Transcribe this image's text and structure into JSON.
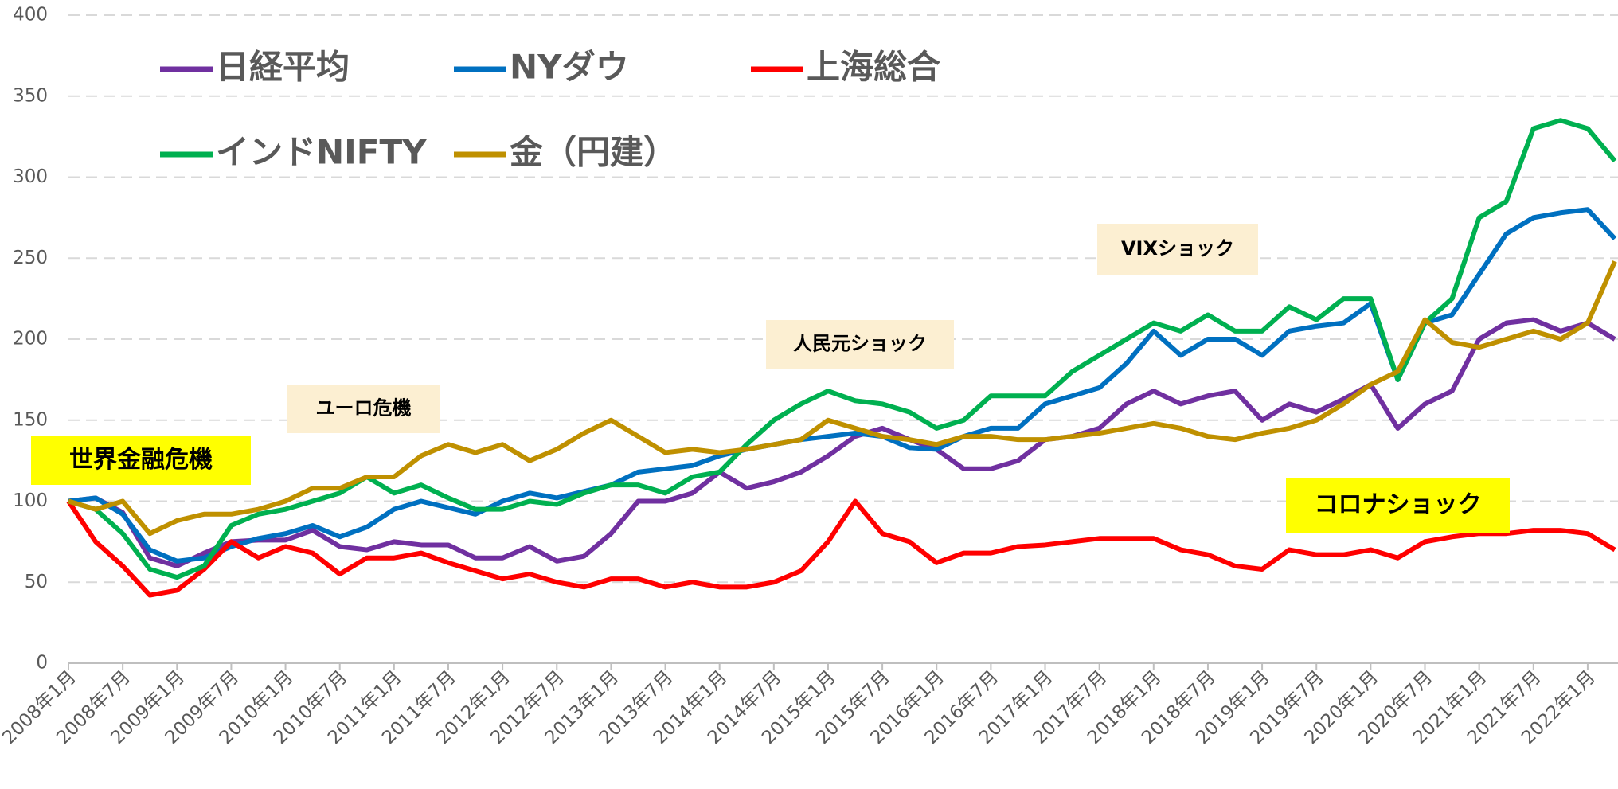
{
  "chart_data": {
    "type": "line",
    "categories": [
      "2008年1月",
      null,
      "2008年7月",
      null,
      "2009年1月",
      null,
      "2009年7月",
      null,
      "2010年1月",
      null,
      "2010年7月",
      null,
      "2011年1月",
      null,
      "2011年7月",
      null,
      "2012年1月",
      null,
      "2012年7月",
      null,
      "2013年1月",
      null,
      "2013年7月",
      null,
      "2014年1月",
      null,
      "2014年7月",
      null,
      "2015年1月",
      null,
      "2015年7月",
      null,
      "2016年1月",
      null,
      "2016年7月",
      null,
      "2017年1月",
      null,
      "2017年7月",
      null,
      "2018年1月",
      null,
      "2018年7月",
      null,
      "2019年1月",
      null,
      "2019年7月",
      null,
      "2020年1月",
      null,
      "2020年7月",
      null,
      "2021年1月",
      null,
      "2021年7月",
      null,
      "2022年1月",
      null
    ],
    "series": [
      {
        "name": "日経平均",
        "color": "#7030a0",
        "values": [
          100,
          102,
          93,
          65,
          60,
          68,
          75,
          76,
          76,
          82,
          72,
          70,
          75,
          73,
          73,
          65,
          65,
          72,
          63,
          66,
          80,
          100,
          100,
          105,
          118,
          108,
          112,
          118,
          128,
          140,
          145,
          138,
          132,
          120,
          120,
          125,
          138,
          140,
          145,
          160,
          168,
          160,
          165,
          168,
          150,
          160,
          155,
          163,
          172,
          145,
          160,
          168,
          200,
          210,
          212,
          205,
          210,
          200
        ]
      },
      {
        "name": "NYダウ",
        "color": "#0070c0",
        "values": [
          100,
          102,
          92,
          70,
          63,
          65,
          72,
          77,
          80,
          85,
          78,
          84,
          95,
          100,
          96,
          92,
          100,
          105,
          102,
          106,
          110,
          118,
          120,
          122,
          128,
          132,
          135,
          138,
          140,
          142,
          140,
          133,
          132,
          140,
          145,
          145,
          160,
          165,
          170,
          185,
          205,
          190,
          200,
          200,
          190,
          205,
          208,
          210,
          222,
          175,
          210,
          215,
          240,
          265,
          275,
          278,
          280,
          262
        ]
      },
      {
        "name": "上海総合",
        "color": "#ff0000",
        "values": [
          100,
          75,
          60,
          42,
          45,
          58,
          75,
          65,
          72,
          68,
          55,
          65,
          65,
          68,
          62,
          57,
          52,
          55,
          50,
          47,
          52,
          52,
          47,
          50,
          47,
          47,
          50,
          57,
          75,
          100,
          80,
          75,
          62,
          68,
          68,
          72,
          73,
          75,
          77,
          77,
          77,
          70,
          67,
          60,
          58,
          70,
          67,
          67,
          70,
          65,
          75,
          78,
          80,
          80,
          82,
          82,
          80,
          70
        ]
      },
      {
        "name": "インドNIFTY",
        "color": "#00b050",
        "values": [
          100,
          95,
          80,
          58,
          53,
          60,
          85,
          92,
          95,
          100,
          105,
          115,
          105,
          110,
          102,
          95,
          95,
          100,
          98,
          105,
          110,
          110,
          105,
          115,
          118,
          135,
          150,
          160,
          168,
          162,
          160,
          155,
          145,
          150,
          165,
          165,
          165,
          180,
          190,
          200,
          210,
          205,
          215,
          205,
          205,
          220,
          212,
          225,
          225,
          175,
          210,
          225,
          275,
          285,
          330,
          335,
          330,
          310
        ]
      },
      {
        "name": "金（円建）",
        "color": "#bf9000",
        "values": [
          100,
          95,
          100,
          80,
          88,
          92,
          92,
          95,
          100,
          108,
          108,
          115,
          115,
          128,
          135,
          130,
          135,
          125,
          132,
          142,
          150,
          140,
          130,
          132,
          130,
          132,
          135,
          138,
          150,
          145,
          140,
          138,
          135,
          140,
          140,
          138,
          138,
          140,
          142,
          145,
          148,
          145,
          140,
          138,
          142,
          145,
          150,
          160,
          172,
          180,
          212,
          198,
          195,
          200,
          205,
          200,
          210,
          248
        ]
      }
    ],
    "ylim": [
      0,
      400
    ],
    "yticks": [
      0,
      50,
      100,
      150,
      200,
      250,
      300,
      350,
      400
    ],
    "grid": true,
    "annotations": [
      "世界金融危機",
      "ユーロ危機",
      "人民元ショック",
      "VIXショック",
      "コロナショック"
    ]
  }
}
